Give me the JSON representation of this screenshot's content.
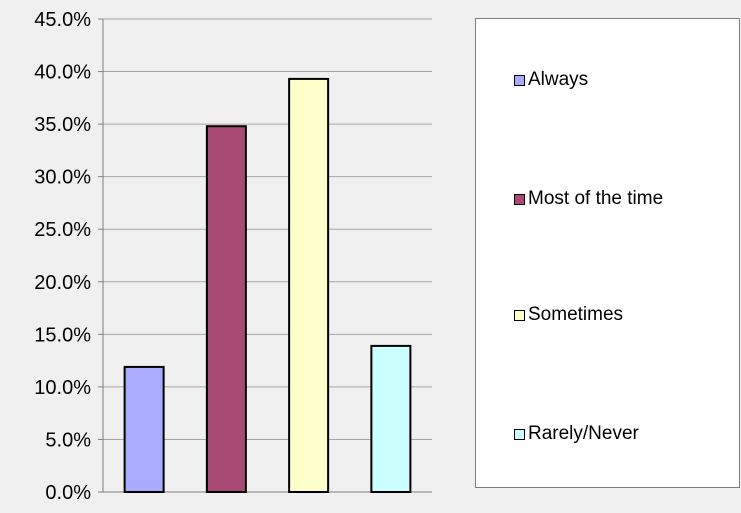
{
  "chart_data": {
    "type": "bar",
    "title": "",
    "xlabel": "",
    "ylabel": "",
    "categories": [
      "Always",
      "Most of the time",
      "Sometimes",
      "Rarely/Never"
    ],
    "values": [
      11.9,
      34.8,
      39.3,
      13.9
    ],
    "value_format": "percent",
    "ylim": [
      0,
      45
    ],
    "ytick_step": 5,
    "ytick_labels": [
      "0.0%",
      "5.0%",
      "10.0%",
      "15.0%",
      "20.0%",
      "25.0%",
      "30.0%",
      "35.0%",
      "40.0%",
      "45.0%"
    ],
    "grid": true,
    "legend": {
      "position": "right",
      "entries": [
        "Always",
        "Most of the time",
        "Sometimes",
        "Rarely/Never"
      ]
    },
    "colors": [
      "#aaaaff",
      "#a94a74",
      "#ffffcc",
      "#ccffff"
    ],
    "gridline_color": "#a6a6a6",
    "bar_edge_color": "#000000",
    "background": "#f0f0f0"
  }
}
